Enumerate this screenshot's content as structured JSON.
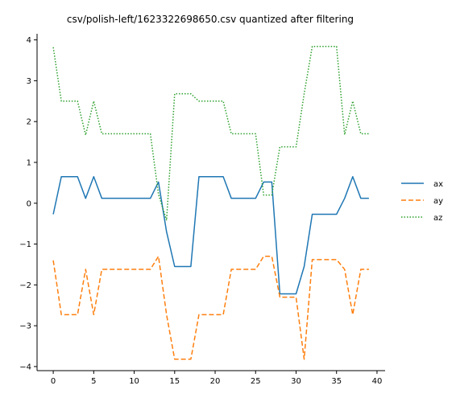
{
  "chart_data": {
    "type": "line",
    "title": "csv/polish-left/1623322698650.csv quantized after filtering",
    "xlabel": "",
    "ylabel": "",
    "xlim": [
      -2,
      41
    ],
    "ylim": [
      -4.1,
      4.15
    ],
    "xticks": [
      0,
      5,
      10,
      15,
      20,
      25,
      30,
      35,
      40
    ],
    "yticks": [
      -4,
      -3,
      -2,
      -1,
      0,
      1,
      2,
      3,
      4
    ],
    "grid": false,
    "legend_position": "right",
    "x": [
      0,
      1,
      2,
      3,
      4,
      5,
      6,
      7,
      8,
      9,
      10,
      11,
      12,
      13,
      14,
      15,
      16,
      17,
      18,
      19,
      20,
      21,
      22,
      23,
      24,
      25,
      26,
      27,
      28,
      29,
      30,
      31,
      32,
      33,
      34,
      35,
      36,
      37,
      38,
      39
    ],
    "series": [
      {
        "name": "ax",
        "color": "#1f77b4",
        "style": "solid",
        "values": [
          -0.27,
          0.65,
          0.65,
          0.65,
          0.12,
          0.65,
          0.12,
          0.12,
          0.12,
          0.12,
          0.12,
          0.12,
          0.12,
          0.52,
          -0.7,
          -1.55,
          -1.55,
          -1.55,
          0.65,
          0.65,
          0.65,
          0.65,
          0.12,
          0.12,
          0.12,
          0.12,
          0.52,
          0.52,
          -2.22,
          -2.22,
          -2.22,
          -1.55,
          -0.27,
          -0.27,
          -0.27,
          -0.27,
          0.12,
          0.65,
          0.12,
          0.12
        ]
      },
      {
        "name": "ay",
        "color": "#ff7f0e",
        "style": "dashed",
        "values": [
          -1.4,
          -2.73,
          -2.73,
          -2.73,
          -1.62,
          -2.73,
          -1.62,
          -1.62,
          -1.62,
          -1.62,
          -1.62,
          -1.62,
          -1.62,
          -1.3,
          -2.73,
          -3.82,
          -3.82,
          -3.82,
          -2.73,
          -2.73,
          -2.73,
          -2.73,
          -1.62,
          -1.62,
          -1.62,
          -1.62,
          -1.3,
          -1.3,
          -2.3,
          -2.3,
          -2.3,
          -3.82,
          -1.38,
          -1.38,
          -1.38,
          -1.38,
          -1.62,
          -2.73,
          -1.62,
          -1.62
        ]
      },
      {
        "name": "az",
        "color": "#2ca02c",
        "style": "dotted",
        "values": [
          3.82,
          2.5,
          2.5,
          2.5,
          1.67,
          2.5,
          1.7,
          1.7,
          1.7,
          1.7,
          1.7,
          1.7,
          1.7,
          0.22,
          -0.42,
          2.68,
          2.68,
          2.68,
          2.5,
          2.5,
          2.5,
          2.5,
          1.7,
          1.7,
          1.7,
          1.7,
          0.2,
          0.2,
          1.38,
          1.38,
          1.38,
          2.68,
          3.84,
          3.84,
          3.84,
          3.84,
          1.68,
          2.5,
          1.7,
          1.7
        ]
      }
    ]
  }
}
